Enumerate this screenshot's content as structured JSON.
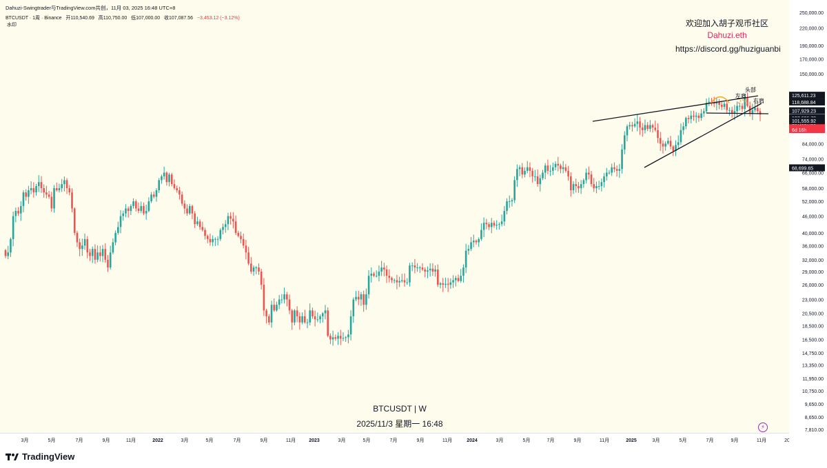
{
  "header": {
    "top_line": "Dahuzi-Swingtrader与TradingView.com共创，11月 03, 2025 16:48 UTC+8",
    "symbol_line": "BTCUSDT · 1周 · Binance",
    "open_label": "开",
    "open": "110,540.69",
    "high_label": "高",
    "high": "110,750.00",
    "low_label": "低",
    "low": "107,000.00",
    "close_label": "收",
    "close": "107,087.56",
    "change": "−3,453.12 (−3.12%)",
    "watermark": "水印"
  },
  "promo": {
    "line1": "欢迎加入胡子观币社区",
    "line2": "Dahuzi.eth",
    "line3": "https://discord.gg/huziguanbi"
  },
  "chart_labels": {
    "line1": "BTCUSDT | W",
    "line2": "2025/11/3 星期一 16:48"
  },
  "footer": {
    "brand": "TradingView"
  },
  "colors": {
    "up": "#26a69a",
    "down": "#ef5350",
    "background": "#fefcec",
    "accent": "#e91e63",
    "pattern": "#f5a623"
  },
  "chart_data": {
    "type": "candlestick",
    "interval": "1W",
    "scale": "log",
    "y_ticks": [
      "250,000.00",
      "220,000.00",
      "190,000.00",
      "170,000.00",
      "150,000.00",
      "84,000.00",
      "74,000.00",
      "66,000.00",
      "58,000.00",
      "52,000.00",
      "46,000.00",
      "40,000.00",
      "36,000.00",
      "32,000.00",
      "29,000.00",
      "26,000.00",
      "23,000.00",
      "20,500.00",
      "18,500.00",
      "16,500.00",
      "14,750.00",
      "13,350.00",
      "11,950.00",
      "10,750.00",
      "9,650.00",
      "8,650.00",
      "7,810.00"
    ],
    "price_labels": [
      {
        "text": "125,611.23",
        "style": "dark"
      },
      {
        "text": "118,688.84",
        "style": "dark"
      },
      {
        "text": "107,929.23",
        "style": "dark"
      },
      {
        "text": "107,696.78",
        "style": "dark"
      },
      {
        "text": "107,087.56",
        "style": "red"
      },
      {
        "text": "6d 16h",
        "style": "red"
      },
      {
        "text": "101,555.92",
        "style": "dark"
      },
      {
        "text": "68,699.65",
        "style": "dark"
      }
    ],
    "x_ticks": [
      {
        "label": "3月"
      },
      {
        "label": "5月"
      },
      {
        "label": "7月"
      },
      {
        "label": "9月"
      },
      {
        "label": "11月"
      },
      {
        "label": "2022",
        "bold": true
      },
      {
        "label": "3月"
      },
      {
        "label": "5月"
      },
      {
        "label": "7月"
      },
      {
        "label": "9月"
      },
      {
        "label": "11月"
      },
      {
        "label": "2023",
        "bold": true
      },
      {
        "label": "3月"
      },
      {
        "label": "5月"
      },
      {
        "label": "7月"
      },
      {
        "label": "9月"
      },
      {
        "label": "11月"
      },
      {
        "label": "2024",
        "bold": true
      },
      {
        "label": "3月"
      },
      {
        "label": "5月"
      },
      {
        "label": "7月"
      },
      {
        "label": "9月"
      },
      {
        "label": "11月"
      },
      {
        "label": "2025",
        "bold": true
      },
      {
        "label": "3月"
      },
      {
        "label": "5月"
      },
      {
        "label": "7月"
      },
      {
        "label": "9月"
      },
      {
        "label": "11月"
      },
      {
        "label": "20"
      }
    ],
    "annotations": [
      {
        "text": "左肩"
      },
      {
        "text": "头部"
      },
      {
        "text": "右肩"
      }
    ],
    "closes": [
      33000,
      34000,
      38000,
      46000,
      48000,
      47000,
      50000,
      56000,
      54000,
      57000,
      58000,
      56000,
      59000,
      61000,
      58000,
      56000,
      55000,
      54000,
      49000,
      58000,
      57000,
      58000,
      60000,
      62000,
      58000,
      56000,
      49000,
      40000,
      37000,
      35000,
      36000,
      38000,
      34000,
      33000,
      35000,
      32000,
      34000,
      33000,
      35000,
      32000,
      30000,
      34000,
      37000,
      40000,
      42000,
      46000,
      47000,
      49000,
      48000,
      50000,
      52000,
      49000,
      48000,
      50000,
      47000,
      48000,
      52000,
      55000,
      54000,
      57000,
      62000,
      64000,
      66000,
      61000,
      65000,
      60000,
      58000,
      57000,
      55000,
      51000,
      49000,
      47000,
      50000,
      47000,
      43000,
      44000,
      42000,
      41000,
      39000,
      38000,
      37000,
      38000,
      38000,
      38000,
      41000,
      42000,
      43000,
      46000,
      45000,
      44000,
      40000,
      39000,
      38000,
      36000,
      34000,
      31000,
      29000,
      30000,
      30000,
      29000,
      26000,
      21000,
      20000,
      19000,
      22000,
      21000,
      22000,
      23000,
      23000,
      24000,
      23000,
      21000,
      19000,
      21000,
      20000,
      19000,
      20000,
      19000,
      19000,
      21000,
      20000,
      19500,
      19500,
      20000,
      20500,
      21000,
      17000,
      16500,
      16800,
      16600,
      17000,
      16600,
      16700,
      16800,
      17200,
      20000,
      23000,
      23500,
      23000,
      24000,
      22000,
      24000,
      28000,
      28500,
      28000,
      28000,
      29000,
      30000,
      29500,
      28000,
      27500,
      27000,
      27000,
      26500,
      26800,
      27000,
      26500,
      26500,
      30500,
      30500,
      30000,
      30000,
      30000,
      29500,
      29000,
      29300,
      29700,
      29000,
      29500,
      26000,
      26300,
      26000,
      26200,
      26000,
      26500,
      27000,
      27500,
      26800,
      28000,
      30000,
      34500,
      35000,
      37000,
      37500,
      37000,
      38000,
      41000,
      43500,
      43000,
      42000,
      43500,
      42500,
      42800,
      43000,
      44000,
      48000,
      52000,
      52000,
      52500,
      62000,
      68000,
      69000,
      65000,
      67000,
      69000,
      67000,
      64000,
      64000,
      60000,
      63000,
      66000,
      70000,
      67000,
      67000,
      69000,
      71000,
      70000,
      68000,
      69000,
      67000,
      64000,
      57000,
      60000,
      59000,
      58000,
      60000,
      62000,
      66000,
      65000,
      60000,
      58000,
      59000,
      59000,
      61000,
      64000,
      66000,
      66000,
      69000,
      68000,
      67000,
      68000,
      80000,
      90000,
      97000,
      98000,
      97000,
      99000,
      101000,
      96000,
      94000,
      98000,
      95000,
      98000,
      96000,
      94000,
      88000,
      84000,
      82000,
      84000,
      86000,
      82000,
      79000,
      83000,
      85000,
      94000,
      97000,
      104000,
      103000,
      106000,
      105000,
      106000,
      104000,
      108000,
      110000,
      118000,
      119000,
      118000,
      117000,
      119000,
      116000,
      114000,
      117000,
      111000,
      111000,
      108000,
      110000,
      115000,
      115000,
      112000,
      123000,
      115000,
      108000,
      111000,
      113000,
      110000,
      107000
    ],
    "trendlines": [
      {
        "name": "upper-resistance",
        "from": [
          "2024-10",
          93000
        ],
        "to": [
          "2025-10",
          125000
        ]
      },
      {
        "name": "rising-support",
        "from": [
          "2025-02",
          69000
        ],
        "to": [
          "2025-10",
          120000
        ]
      },
      {
        "name": "neckline",
        "from": [
          "2025-06",
          107000
        ],
        "to": [
          "2025-11",
          108000
        ]
      }
    ]
  }
}
